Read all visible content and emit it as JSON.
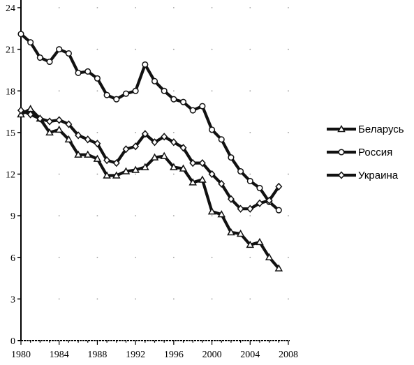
{
  "chart_data": {
    "type": "line",
    "xlim": [
      1980,
      2008
    ],
    "ylim": [
      0,
      24
    ],
    "x_ticks": [
      1980,
      1984,
      1988,
      1992,
      1996,
      2000,
      2004,
      2008
    ],
    "y_ticks": [
      0,
      3,
      6,
      9,
      12,
      15,
      18,
      21,
      24
    ],
    "grid": "dotted-crosses",
    "legend_position": "right",
    "colors": {
      "lines": "#111111",
      "axis": "#000000",
      "grid": "#9a9a9a"
    },
    "series": [
      {
        "name": "Беларусь",
        "marker": "triangle",
        "x": [
          1980,
          1981,
          1982,
          1983,
          1984,
          1985,
          1986,
          1987,
          1988,
          1989,
          1990,
          1991,
          1992,
          1993,
          1994,
          1995,
          1996,
          1997,
          1998,
          1999,
          2000,
          2001,
          2002,
          2003,
          2004,
          2005,
          2006,
          2007
        ],
        "values": [
          16.3,
          16.7,
          16.0,
          15.0,
          15.2,
          14.5,
          13.4,
          13.4,
          13.1,
          11.9,
          11.9,
          12.2,
          12.3,
          12.5,
          13.2,
          13.3,
          12.5,
          12.4,
          11.4,
          11.6,
          9.3,
          9.1,
          7.8,
          7.7,
          6.9,
          7.1,
          6.0,
          5.2
        ]
      },
      {
        "name": "Россия",
        "marker": "circle",
        "x": [
          1980,
          1981,
          1982,
          1983,
          1984,
          1985,
          1986,
          1987,
          1988,
          1989,
          1990,
          1991,
          1992,
          1993,
          1994,
          1995,
          1996,
          1997,
          1998,
          1999,
          2000,
          2001,
          2002,
          2003,
          2004,
          2005,
          2006,
          2007
        ],
        "values": [
          22.1,
          21.5,
          20.4,
          20.1,
          21.0,
          20.7,
          19.3,
          19.4,
          18.9,
          17.7,
          17.4,
          17.8,
          18.0,
          19.9,
          18.7,
          18.0,
          17.4,
          17.2,
          16.6,
          16.9,
          15.2,
          14.5,
          13.2,
          12.2,
          11.5,
          11.0,
          10.0,
          9.4
        ]
      },
      {
        "name": "Украина",
        "marker": "diamond",
        "x": [
          1980,
          1981,
          1982,
          1983,
          1984,
          1985,
          1986,
          1987,
          1988,
          1989,
          1990,
          1991,
          1992,
          1993,
          1994,
          1995,
          1996,
          1997,
          1998,
          1999,
          2000,
          2001,
          2002,
          2003,
          2004,
          2005,
          2006,
          2007
        ],
        "values": [
          16.6,
          16.3,
          16.0,
          15.8,
          15.9,
          15.6,
          14.8,
          14.5,
          14.2,
          13.0,
          12.8,
          13.8,
          14.0,
          14.9,
          14.3,
          14.7,
          14.3,
          13.9,
          12.8,
          12.8,
          12.0,
          11.3,
          10.2,
          9.5,
          9.5,
          9.9,
          10.1,
          11.1
        ]
      }
    ]
  }
}
